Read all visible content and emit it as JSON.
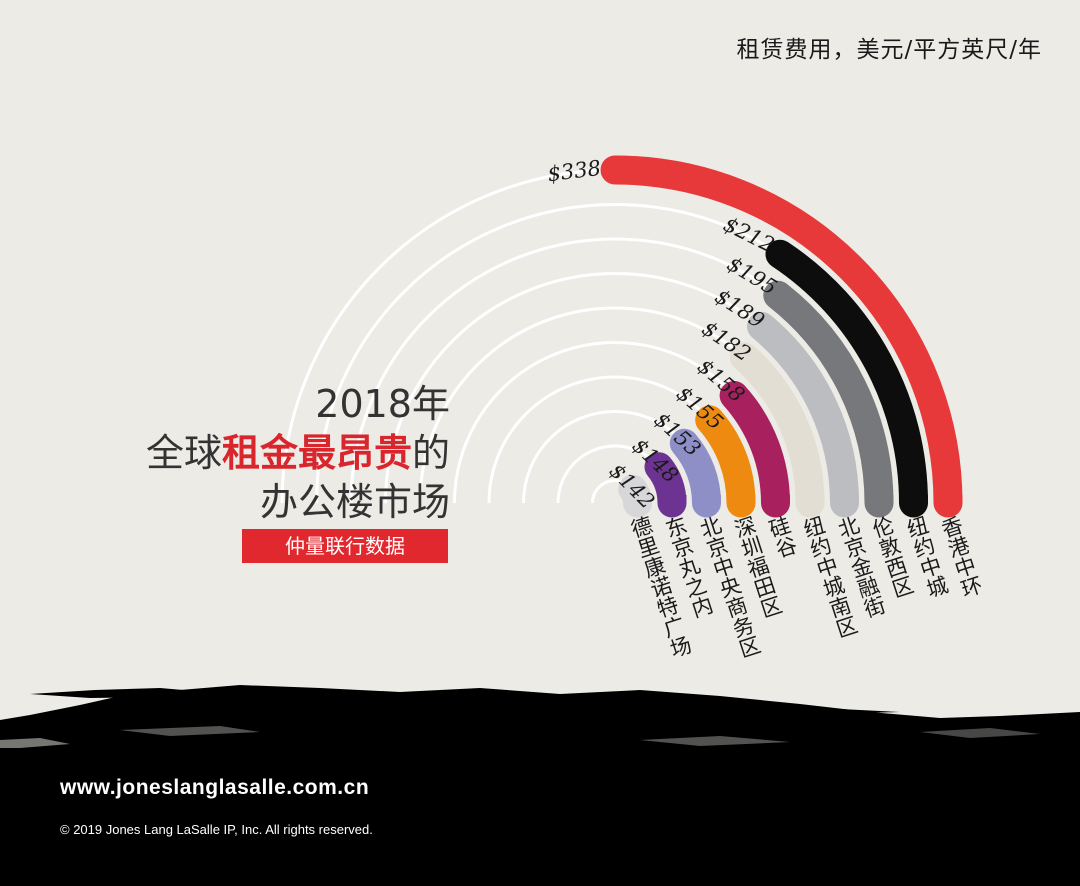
{
  "header": {
    "unit_label": "租赁费用，美元/平方英尺/年"
  },
  "title": {
    "line1": "2018年",
    "line2_pre": "全球",
    "line2_highlight": "租金最昂贵",
    "line2_post": "的",
    "line3": "办公楼市场"
  },
  "source_badge": "仲量联行数据",
  "footer": {
    "url": "www.joneslanglasalle.com.cn",
    "copyright": "© 2019 Jones Lang LaSalle IP, Inc. All rights reserved."
  },
  "chart_data": {
    "type": "bar",
    "categories": [
      "香港中环",
      "纽约中城",
      "伦敦西区",
      "北京金融街",
      "纽约中城南区",
      "硅谷",
      "深圳福田区",
      "北京中央商务区",
      "东京丸之内",
      "德里康诺特广场"
    ],
    "values": [
      338,
      212,
      195,
      189,
      182,
      158,
      155,
      153,
      148,
      142
    ],
    "value_labels": [
      "$338",
      "$212",
      "$195",
      "$189",
      "$182",
      "$158",
      "$155",
      "$153",
      "$148",
      "$142"
    ],
    "colors": [
      "#e8393a",
      "#0d0d0d",
      "#77787b",
      "#bcbdc0",
      "#e2ded3",
      "#a8215e",
      "#ee8a10",
      "#8d8fc6",
      "#6d3392",
      "#d7d7da"
    ]
  }
}
